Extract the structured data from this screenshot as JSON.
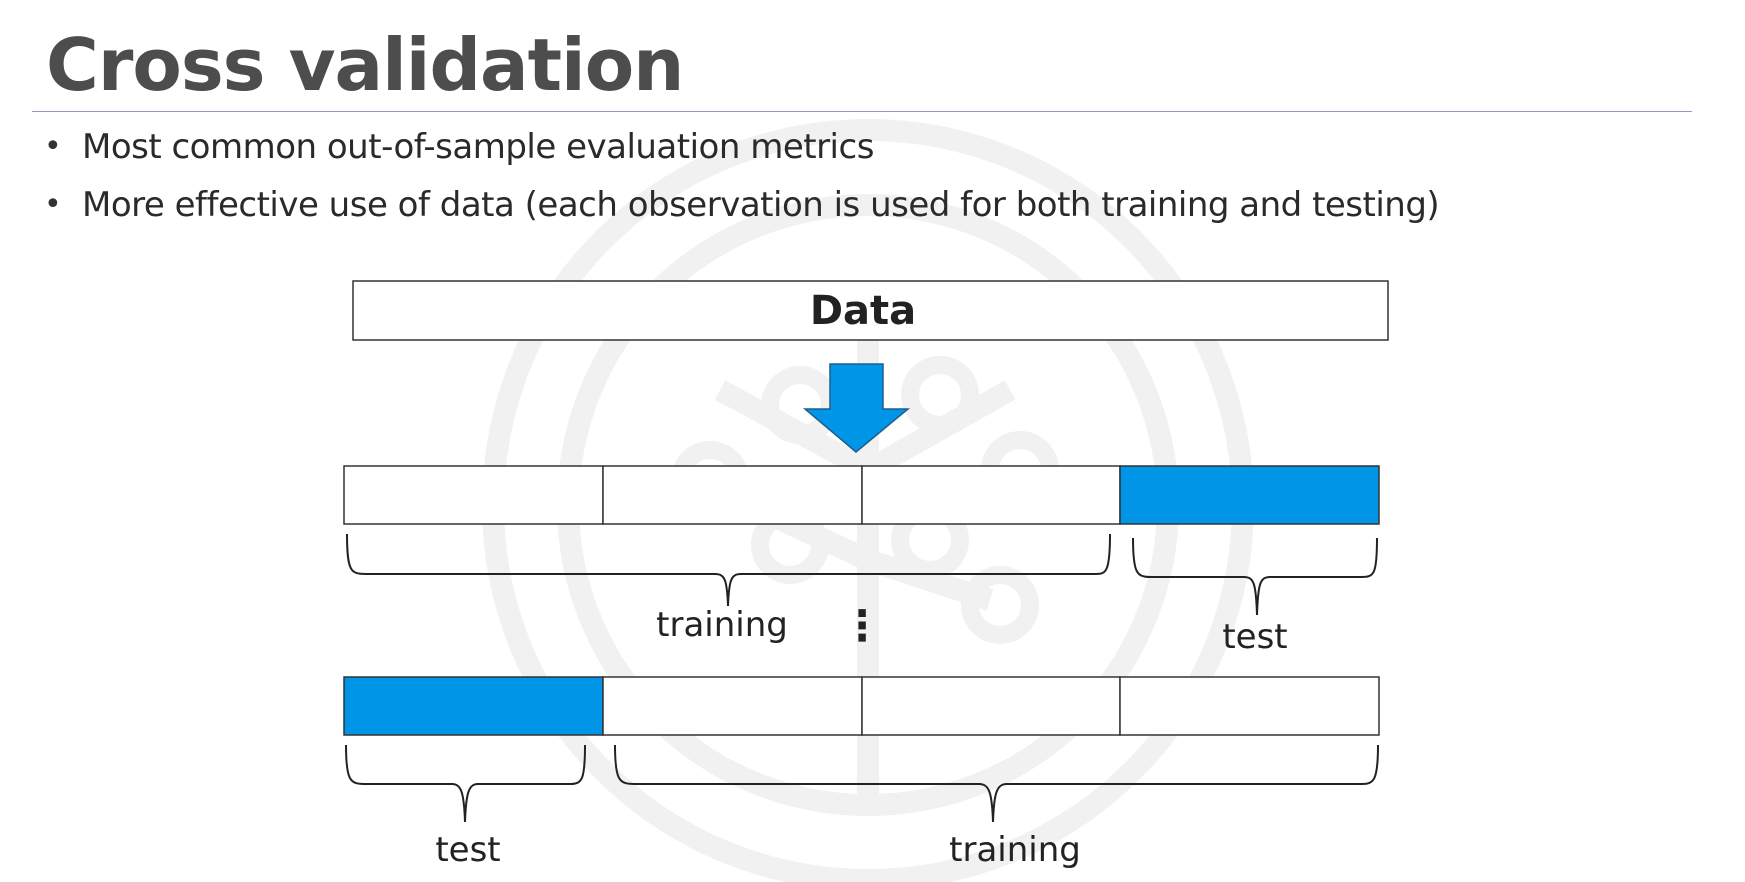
{
  "slide": {
    "title": "Cross validation"
  },
  "bullets": [
    {
      "marker": "•",
      "text": "Most common out-of-sample evaluation metrics"
    },
    {
      "marker": "•",
      "text": "More effective use of data (each observation is used for both training and testing)"
    }
  ],
  "diagram": {
    "data_label": "Data",
    "arrow_icon": "down-arrow-icon",
    "ellipsis": "⋮",
    "fold_rows": [
      {
        "fold_count": 4,
        "test_fold_index": 3,
        "labels": {
          "training": "training",
          "test": "test"
        }
      },
      {
        "fold_count": 4,
        "test_fold_index": 0,
        "labels": {
          "training": "training",
          "test": "test"
        }
      }
    ]
  },
  "colors": {
    "test_fold": "#0095e6",
    "arrow": "#0095e6",
    "title": "#4d4d4d",
    "rule": "#9b93c9"
  }
}
